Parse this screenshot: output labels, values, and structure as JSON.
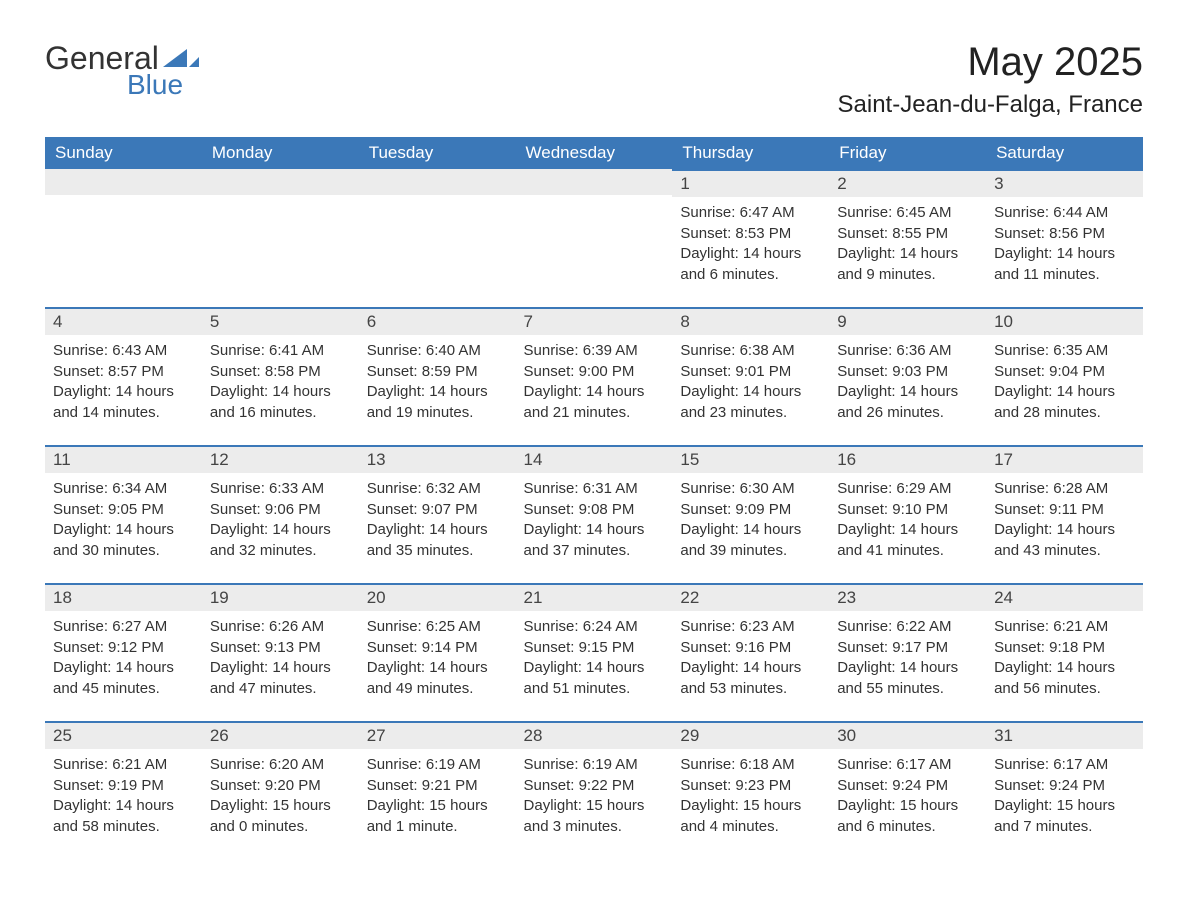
{
  "logo": {
    "text_general": "General",
    "text_blue": "Blue",
    "icon_color": "#3b78b8"
  },
  "title": "May 2025",
  "location": "Saint-Jean-du-Falga, France",
  "header_bg": "#3b78b8",
  "header_fg": "#ffffff",
  "daynum_bg": "#ececec",
  "daynum_border": "#3b78b8",
  "text_color": "#333333",
  "days_of_week": [
    "Sunday",
    "Monday",
    "Tuesday",
    "Wednesday",
    "Thursday",
    "Friday",
    "Saturday"
  ],
  "weeks": [
    [
      null,
      null,
      null,
      null,
      {
        "n": "1",
        "sunrise": "Sunrise: 6:47 AM",
        "sunset": "Sunset: 8:53 PM",
        "daylight": "Daylight: 14 hours and 6 minutes."
      },
      {
        "n": "2",
        "sunrise": "Sunrise: 6:45 AM",
        "sunset": "Sunset: 8:55 PM",
        "daylight": "Daylight: 14 hours and 9 minutes."
      },
      {
        "n": "3",
        "sunrise": "Sunrise: 6:44 AM",
        "sunset": "Sunset: 8:56 PM",
        "daylight": "Daylight: 14 hours and 11 minutes."
      }
    ],
    [
      {
        "n": "4",
        "sunrise": "Sunrise: 6:43 AM",
        "sunset": "Sunset: 8:57 PM",
        "daylight": "Daylight: 14 hours and 14 minutes."
      },
      {
        "n": "5",
        "sunrise": "Sunrise: 6:41 AM",
        "sunset": "Sunset: 8:58 PM",
        "daylight": "Daylight: 14 hours and 16 minutes."
      },
      {
        "n": "6",
        "sunrise": "Sunrise: 6:40 AM",
        "sunset": "Sunset: 8:59 PM",
        "daylight": "Daylight: 14 hours and 19 minutes."
      },
      {
        "n": "7",
        "sunrise": "Sunrise: 6:39 AM",
        "sunset": "Sunset: 9:00 PM",
        "daylight": "Daylight: 14 hours and 21 minutes."
      },
      {
        "n": "8",
        "sunrise": "Sunrise: 6:38 AM",
        "sunset": "Sunset: 9:01 PM",
        "daylight": "Daylight: 14 hours and 23 minutes."
      },
      {
        "n": "9",
        "sunrise": "Sunrise: 6:36 AM",
        "sunset": "Sunset: 9:03 PM",
        "daylight": "Daylight: 14 hours and 26 minutes."
      },
      {
        "n": "10",
        "sunrise": "Sunrise: 6:35 AM",
        "sunset": "Sunset: 9:04 PM",
        "daylight": "Daylight: 14 hours and 28 minutes."
      }
    ],
    [
      {
        "n": "11",
        "sunrise": "Sunrise: 6:34 AM",
        "sunset": "Sunset: 9:05 PM",
        "daylight": "Daylight: 14 hours and 30 minutes."
      },
      {
        "n": "12",
        "sunrise": "Sunrise: 6:33 AM",
        "sunset": "Sunset: 9:06 PM",
        "daylight": "Daylight: 14 hours and 32 minutes."
      },
      {
        "n": "13",
        "sunrise": "Sunrise: 6:32 AM",
        "sunset": "Sunset: 9:07 PM",
        "daylight": "Daylight: 14 hours and 35 minutes."
      },
      {
        "n": "14",
        "sunrise": "Sunrise: 6:31 AM",
        "sunset": "Sunset: 9:08 PM",
        "daylight": "Daylight: 14 hours and 37 minutes."
      },
      {
        "n": "15",
        "sunrise": "Sunrise: 6:30 AM",
        "sunset": "Sunset: 9:09 PM",
        "daylight": "Daylight: 14 hours and 39 minutes."
      },
      {
        "n": "16",
        "sunrise": "Sunrise: 6:29 AM",
        "sunset": "Sunset: 9:10 PM",
        "daylight": "Daylight: 14 hours and 41 minutes."
      },
      {
        "n": "17",
        "sunrise": "Sunrise: 6:28 AM",
        "sunset": "Sunset: 9:11 PM",
        "daylight": "Daylight: 14 hours and 43 minutes."
      }
    ],
    [
      {
        "n": "18",
        "sunrise": "Sunrise: 6:27 AM",
        "sunset": "Sunset: 9:12 PM",
        "daylight": "Daylight: 14 hours and 45 minutes."
      },
      {
        "n": "19",
        "sunrise": "Sunrise: 6:26 AM",
        "sunset": "Sunset: 9:13 PM",
        "daylight": "Daylight: 14 hours and 47 minutes."
      },
      {
        "n": "20",
        "sunrise": "Sunrise: 6:25 AM",
        "sunset": "Sunset: 9:14 PM",
        "daylight": "Daylight: 14 hours and 49 minutes."
      },
      {
        "n": "21",
        "sunrise": "Sunrise: 6:24 AM",
        "sunset": "Sunset: 9:15 PM",
        "daylight": "Daylight: 14 hours and 51 minutes."
      },
      {
        "n": "22",
        "sunrise": "Sunrise: 6:23 AM",
        "sunset": "Sunset: 9:16 PM",
        "daylight": "Daylight: 14 hours and 53 minutes."
      },
      {
        "n": "23",
        "sunrise": "Sunrise: 6:22 AM",
        "sunset": "Sunset: 9:17 PM",
        "daylight": "Daylight: 14 hours and 55 minutes."
      },
      {
        "n": "24",
        "sunrise": "Sunrise: 6:21 AM",
        "sunset": "Sunset: 9:18 PM",
        "daylight": "Daylight: 14 hours and 56 minutes."
      }
    ],
    [
      {
        "n": "25",
        "sunrise": "Sunrise: 6:21 AM",
        "sunset": "Sunset: 9:19 PM",
        "daylight": "Daylight: 14 hours and 58 minutes."
      },
      {
        "n": "26",
        "sunrise": "Sunrise: 6:20 AM",
        "sunset": "Sunset: 9:20 PM",
        "daylight": "Daylight: 15 hours and 0 minutes."
      },
      {
        "n": "27",
        "sunrise": "Sunrise: 6:19 AM",
        "sunset": "Sunset: 9:21 PM",
        "daylight": "Daylight: 15 hours and 1 minute."
      },
      {
        "n": "28",
        "sunrise": "Sunrise: 6:19 AM",
        "sunset": "Sunset: 9:22 PM",
        "daylight": "Daylight: 15 hours and 3 minutes."
      },
      {
        "n": "29",
        "sunrise": "Sunrise: 6:18 AM",
        "sunset": "Sunset: 9:23 PM",
        "daylight": "Daylight: 15 hours and 4 minutes."
      },
      {
        "n": "30",
        "sunrise": "Sunrise: 6:17 AM",
        "sunset": "Sunset: 9:24 PM",
        "daylight": "Daylight: 15 hours and 6 minutes."
      },
      {
        "n": "31",
        "sunrise": "Sunrise: 6:17 AM",
        "sunset": "Sunset: 9:24 PM",
        "daylight": "Daylight: 15 hours and 7 minutes."
      }
    ]
  ]
}
